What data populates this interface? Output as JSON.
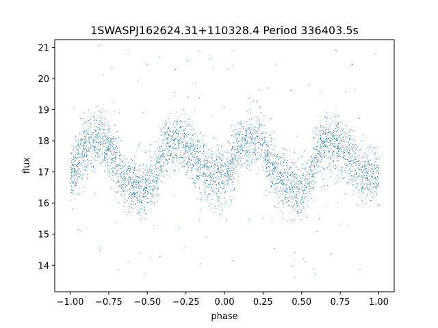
{
  "chart_data": {
    "type": "scatter",
    "title": "1SWASPJ162624.31+110328.4 Period 336403.5s",
    "xlabel": "phase",
    "ylabel": "flux",
    "xlim": [
      -1.1,
      1.1
    ],
    "ylim": [
      13.15,
      21.25
    ],
    "x_ticks": [
      -1.0,
      -0.75,
      -0.5,
      -0.25,
      0.0,
      0.25,
      0.5,
      0.75,
      1.0
    ],
    "x_tick_labels": [
      "−1.00",
      "−0.75",
      "−0.50",
      "−0.25",
      "0.00",
      "0.25",
      "0.50",
      "0.75",
      "1.00"
    ],
    "y_ticks": [
      14,
      15,
      16,
      17,
      18,
      19,
      20,
      21
    ],
    "y_tick_labels": [
      "14",
      "15",
      "16",
      "17",
      "18",
      "19",
      "20",
      "21"
    ],
    "grid": false,
    "point_color": "#1f77b4",
    "series": [
      {
        "phase_range": [
          -1.0,
          1.0
        ],
        "folded_period_in_phase": 1.0,
        "mean_curve": {
          "phase": [
            -0.97,
            -0.9,
            -0.82,
            -0.75,
            -0.68,
            -0.6,
            -0.52,
            -0.45,
            -0.38,
            -0.3,
            -0.22,
            -0.15,
            -0.08,
            0.0,
            0.05
          ],
          "flux": [
            17.1,
            17.8,
            18.1,
            17.9,
            17.0,
            16.6,
            16.4,
            16.8,
            17.9,
            18.0,
            17.7,
            17.1,
            16.9,
            16.9,
            17.2
          ]
        },
        "typical_scatter": 0.45,
        "flux_extent": [
          13.6,
          21.1
        ]
      }
    ]
  }
}
